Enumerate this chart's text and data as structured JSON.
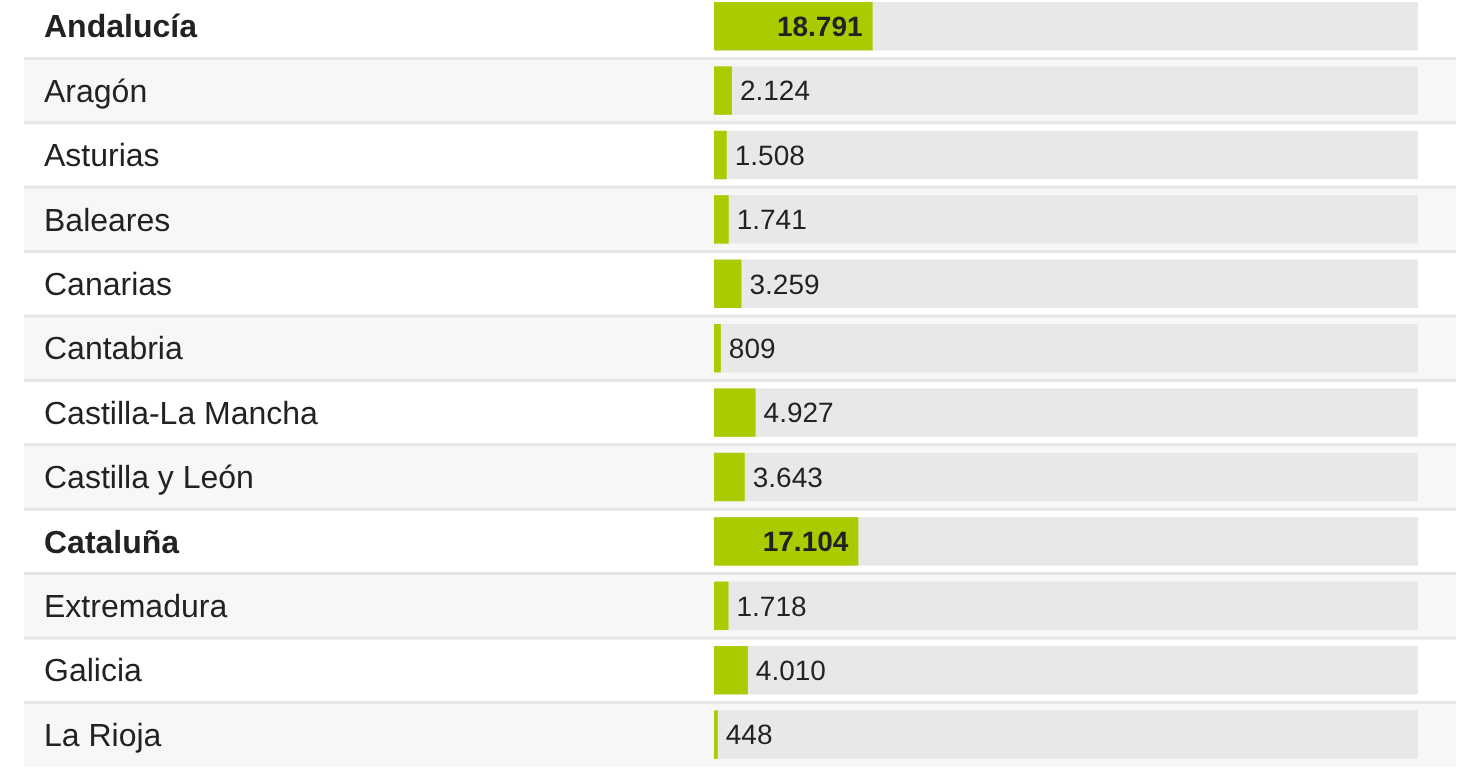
{
  "chart_data": {
    "type": "bar",
    "orientation": "horizontal",
    "categories": [
      "Andalucía",
      "Aragón",
      "Asturias",
      "Baleares",
      "Canarias",
      "Cantabria",
      "Castilla-La Mancha",
      "Castilla y León",
      "Cataluña",
      "Extremadura",
      "Galicia",
      "La Rioja"
    ],
    "values": [
      18791,
      2124,
      1508,
      1741,
      3259,
      809,
      4927,
      3643,
      17104,
      1718,
      4010,
      448
    ],
    "value_labels": [
      "18.791",
      "2.124",
      "1.508",
      "1.741",
      "3.259",
      "809",
      "4.927",
      "3.643",
      "17.104",
      "1.718",
      "4.010",
      "448"
    ],
    "color": "#a8cc00",
    "xlim": [
      0,
      83400
    ],
    "tick_labels": "y"
  }
}
